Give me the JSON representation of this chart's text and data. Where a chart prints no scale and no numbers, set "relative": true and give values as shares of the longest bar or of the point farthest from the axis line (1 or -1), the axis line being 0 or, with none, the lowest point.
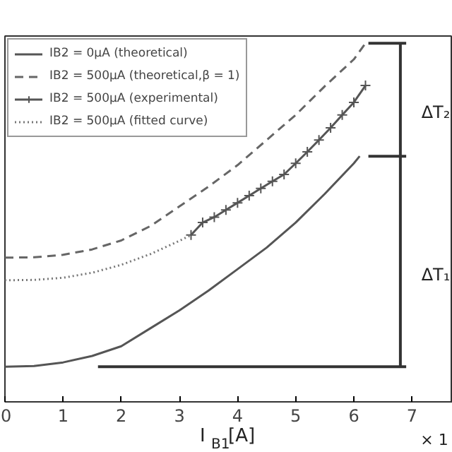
{
  "chart_data": {
    "type": "line",
    "relative": true,
    "xlabel": "I$_{B1}$[A]",
    "xlim": [
      0,
      7.7
    ],
    "xticks": [
      0,
      1,
      2,
      3,
      4,
      5,
      6,
      7
    ],
    "grid": false,
    "legend": "top left",
    "tick_labels": "x",
    "series": [
      {
        "name": "IB2 = 0μA (theoretical)",
        "color": "#555555",
        "line_style": "solid",
        "marker": "none",
        "x": [
          0,
          0.5,
          1,
          1.5,
          2,
          2.5,
          3,
          3.5,
          4,
          4.5,
          5,
          5.5,
          6,
          6.1
        ],
        "values": [
          0.098,
          0.1,
          0.11,
          0.128,
          0.155,
          0.205,
          0.255,
          0.31,
          0.37,
          0.43,
          0.5,
          0.58,
          0.665,
          0.685
        ]
      },
      {
        "name": "IB2 = 500μA (theoretical,β = 1)",
        "color": "#666666",
        "line_style": "dashed",
        "marker": "none",
        "x": [
          0,
          0.5,
          1,
          1.5,
          2,
          2.5,
          3,
          3.5,
          4,
          4.5,
          5,
          5.5,
          6,
          6.2
        ],
        "values": [
          0.402,
          0.403,
          0.41,
          0.425,
          0.45,
          0.49,
          0.545,
          0.6,
          0.66,
          0.73,
          0.8,
          0.88,
          0.955,
          1.0
        ]
      },
      {
        "name": "IB2 = 500μA (experimental)",
        "color": "#555555",
        "line_style": "solid",
        "marker": "cross",
        "x": [
          3.2,
          3.4,
          3.6,
          3.8,
          4.0,
          4.2,
          4.4,
          4.6,
          4.8,
          5.0,
          5.2,
          5.4,
          5.6,
          5.8,
          6.0,
          6.2
        ],
        "values": [
          0.465,
          0.5,
          0.515,
          0.535,
          0.555,
          0.575,
          0.595,
          0.615,
          0.634,
          0.665,
          0.697,
          0.73,
          0.764,
          0.8,
          0.835,
          0.882
        ]
      },
      {
        "name": "IB2 = 500μA (fitted curve)",
        "color": "#777777",
        "line_style": "dotted",
        "marker": "none",
        "x": [
          0,
          0.5,
          1,
          1.5,
          2,
          2.5,
          3,
          3.2
        ],
        "values": [
          0.339,
          0.34,
          0.346,
          0.36,
          0.382,
          0.412,
          0.449,
          0.465
        ]
      },
      {
        "color": "#333333",
        "line_style": "solid",
        "marker": "none",
        "x": [
          1.6,
          6.9
        ],
        "values": [
          0.098,
          0.098
        ]
      },
      {
        "color": "#333333",
        "line_style": "solid",
        "marker": "none",
        "x": [
          6.25,
          6.9
        ],
        "values": [
          0.685,
          0.685
        ]
      },
      {
        "color": "#333333",
        "line_style": "solid",
        "marker": "none",
        "x": [
          6.25,
          6.9
        ],
        "values": [
          1.0,
          1.0
        ]
      },
      {
        "color": "#333333",
        "line_style": "solid",
        "marker": "none",
        "x": [
          6.8,
          6.8
        ],
        "values": [
          0.098,
          1.0
        ]
      }
    ],
    "annotations": [
      "ΔT₂",
      "ΔT₁",
      "× 1"
    ]
  }
}
